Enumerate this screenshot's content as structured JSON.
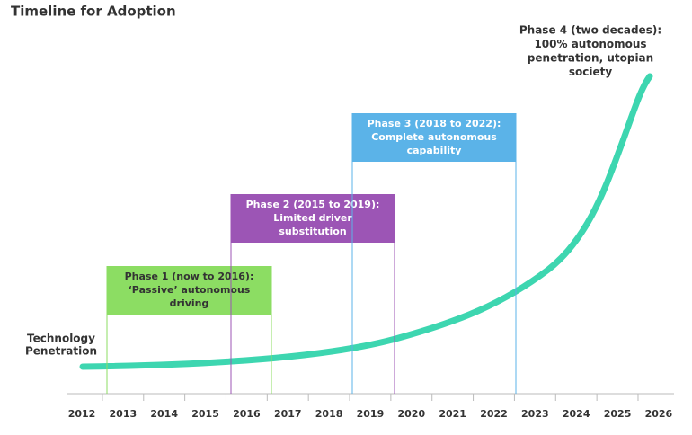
{
  "header": {
    "title": "Timeline for Adoption"
  },
  "y_axis": {
    "label": [
      "Technology",
      "Penetration"
    ]
  },
  "x_axis": {
    "labels": [
      "2012",
      "2013",
      "2014",
      "2015",
      "2016",
      "2017",
      "2018",
      "2019",
      "2020",
      "2021",
      "2022",
      "2023",
      "2024",
      "2025",
      "2026"
    ]
  },
  "phases": [
    {
      "lines": [
        "Phase 1 (now to 2016):",
        "‘Passive’ autonomous",
        "driving"
      ]
    },
    {
      "lines": [
        "Phase 2 (2015 to 2019):",
        "Limited driver",
        "substitution"
      ]
    },
    {
      "lines": [
        "Phase 3 (2018 to 2022):",
        "Complete autonomous",
        "capability"
      ]
    },
    {
      "lines": [
        "Phase 4 (two decades):",
        "100% autonomous",
        "penetration, utopian",
        "society"
      ]
    }
  ]
}
